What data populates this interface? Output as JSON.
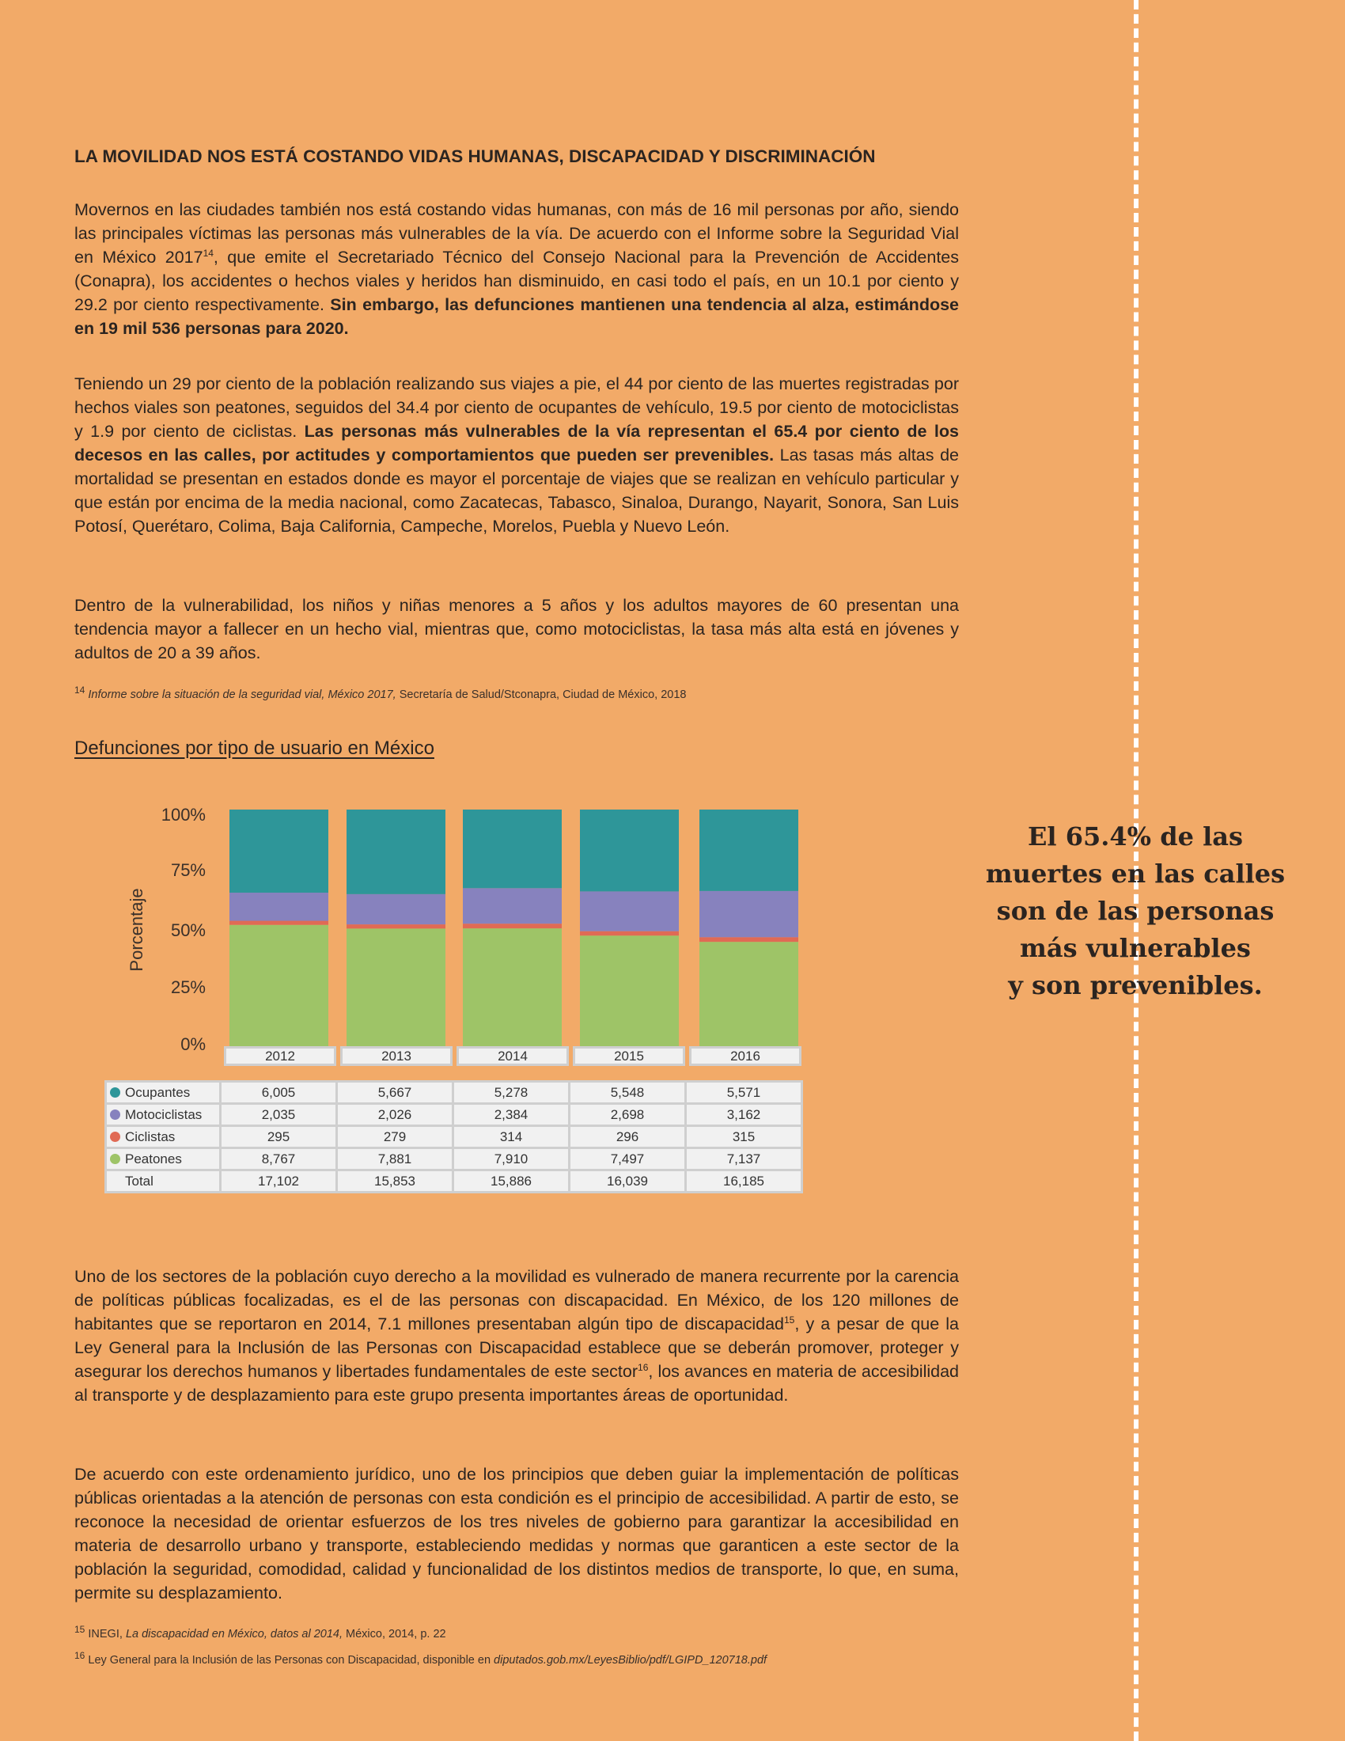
{
  "heading": "LA MOVILIDAD NOS ESTÁ COSTANDO VIDAS HUMANAS, DISCAPACIDAD Y DISCRIMINACIÓN",
  "p1": {
    "a": "Movernos en las ciudades también nos está costando vidas humanas, con más de 16 mil personas por año, siendo las principales víctimas las personas más vulnerables de la vía. De acuerdo con el Informe sobre la Seguridad Vial en México 2017",
    "sup": "14",
    "b": ", que emite el Secretariado Técnico del Consejo Nacional para la Prevención de Accidentes (Conapra), los accidentes o hechos viales y heridos han disminuido, en casi todo el país, en un 10.1 por ciento y 29.2 por ciento respectivamente. ",
    "bold": "Sin embargo, las defunciones mantienen una tendencia al alza, estimándose en 19 mil 536 personas para 2020."
  },
  "p2": {
    "a": "Teniendo un 29 por ciento de la población realizando sus viajes a pie, el 44 por ciento de las muertes registradas por hechos viales son peatones, seguidos del 34.4 por ciento de ocupantes de vehículo, 19.5 por ciento de motociclistas y 1.9 por ciento de ciclistas. ",
    "bold": "Las personas más vulnerables de la vía representan el 65.4 por ciento de los decesos en las calles, por actitudes y comportamientos que pueden ser prevenibles.",
    "b": " Las tasas más altas de mortalidad se presentan en estados donde es mayor el porcentaje de viajes que se realizan en vehículo particular y que están por encima de la media nacional, como Zacatecas, Tabasco, Sinaloa, Durango, Nayarit, Sonora, San Luis Potosí, Querétaro, Colima, Baja California, Campeche, Morelos, Puebla y Nuevo León."
  },
  "p3": "Dentro de la vulnerabilidad, los niños y niñas menores a 5 años y los adultos mayores de 60 presentan una tendencia mayor a fallecer en un hecho vial, mientras que, como motociclistas, la tasa más alta está en jóvenes y adultos de 20 a 39 años.",
  "fn14": {
    "num": "14",
    "italic": "Informe sobre la situación de la seguridad vial, México 2017,",
    "rest": " Secretaría de Salud/Stconapra, Ciudad de México, 2018"
  },
  "chart_title": "Defunciones por tipo de usuario en México",
  "callout": [
    "El 65.4% de las",
    "muertes en las calles",
    "son de las personas",
    "más vulnerables",
    "y son prevenibles."
  ],
  "p4": {
    "a": "Uno de los sectores de la población cuyo derecho a la movilidad es vulnerado de manera recurrente por la carencia de políticas públicas focalizadas, es el de las personas con discapacidad. En México, de los 120 millones de habitantes que se reportaron en 2014, 7.1 millones presentaban algún tipo de discapacidad",
    "sup1": "15",
    "b": ", y a pesar de que la Ley General para la Inclusión de las Personas con Discapacidad establece que se deberán promover, proteger y asegurar los derechos humanos y libertades fundamentales de este sector",
    "sup2": "16",
    "c": ", los avances en materia de accesibilidad al transporte y de desplazamiento para este grupo presenta importantes áreas de oportunidad."
  },
  "p5": "De acuerdo con este ordenamiento jurídico, uno de los principios que deben guiar la implementación de políticas públicas orientadas a la atención de personas con esta condición es el principio de accesibilidad. A partir de esto, se reconoce la necesidad de orientar esfuerzos de los tres niveles de gobierno para garantizar la accesibilidad en materia de desarrollo urbano y transporte, estableciendo medidas y normas que garanticen a este sector de la población la seguridad, comodidad, calidad y funcionalidad de los distintos medios de transporte, lo que, en suma, permite su desplazamiento.",
  "fn15": {
    "num": "15",
    "a": " INEGI, ",
    "italic": "La discapacidad en México, datos al 2014,",
    "rest": " México, 2014, p. 22"
  },
  "fn16": {
    "num": "16",
    "a": "  Ley General para la Inclusión de las Personas con Discapacidad, disponible en ",
    "italic": "diputados.gob.mx/LeyesBiblio/pdf/LGIPD_120718.pdf"
  },
  "chart_data": {
    "type": "bar",
    "stacked": "percent",
    "title": "Defunciones por tipo de usuario en México",
    "ylabel": "Porcentaje",
    "yticks": [
      "100%",
      "75%",
      "50%",
      "25%",
      "0%"
    ],
    "ylim": [
      0,
      100
    ],
    "categories": [
      "2012",
      "2013",
      "2014",
      "2015",
      "2016"
    ],
    "series": [
      {
        "name": "Ocupantes",
        "color": "#2e9699",
        "values": [
          6005,
          5667,
          5278,
          5548,
          5571
        ],
        "labels": [
          "6,005",
          "5,667",
          "5,278",
          "5,548",
          "5,571"
        ]
      },
      {
        "name": "Motociclistas",
        "color": "#8782be",
        "values": [
          2035,
          2026,
          2384,
          2698,
          3162
        ],
        "labels": [
          "2,035",
          "2,026",
          "2,384",
          "2,698",
          "3,162"
        ]
      },
      {
        "name": "Ciclistas",
        "color": "#e06a55",
        "values": [
          295,
          279,
          314,
          296,
          315
        ],
        "labels": [
          "295",
          "279",
          "314",
          "296",
          "315"
        ]
      },
      {
        "name": "Peatones",
        "color": "#9ec467",
        "values": [
          8767,
          7881,
          7910,
          7497,
          7137
        ],
        "labels": [
          "8,767",
          "7,881",
          "7,910",
          "7,497",
          "7,137"
        ]
      }
    ],
    "total": {
      "name": "Total",
      "labels": [
        "17,102",
        "15,853",
        "15,886",
        "16,039",
        "16,185"
      ]
    },
    "legend": "table-below"
  }
}
